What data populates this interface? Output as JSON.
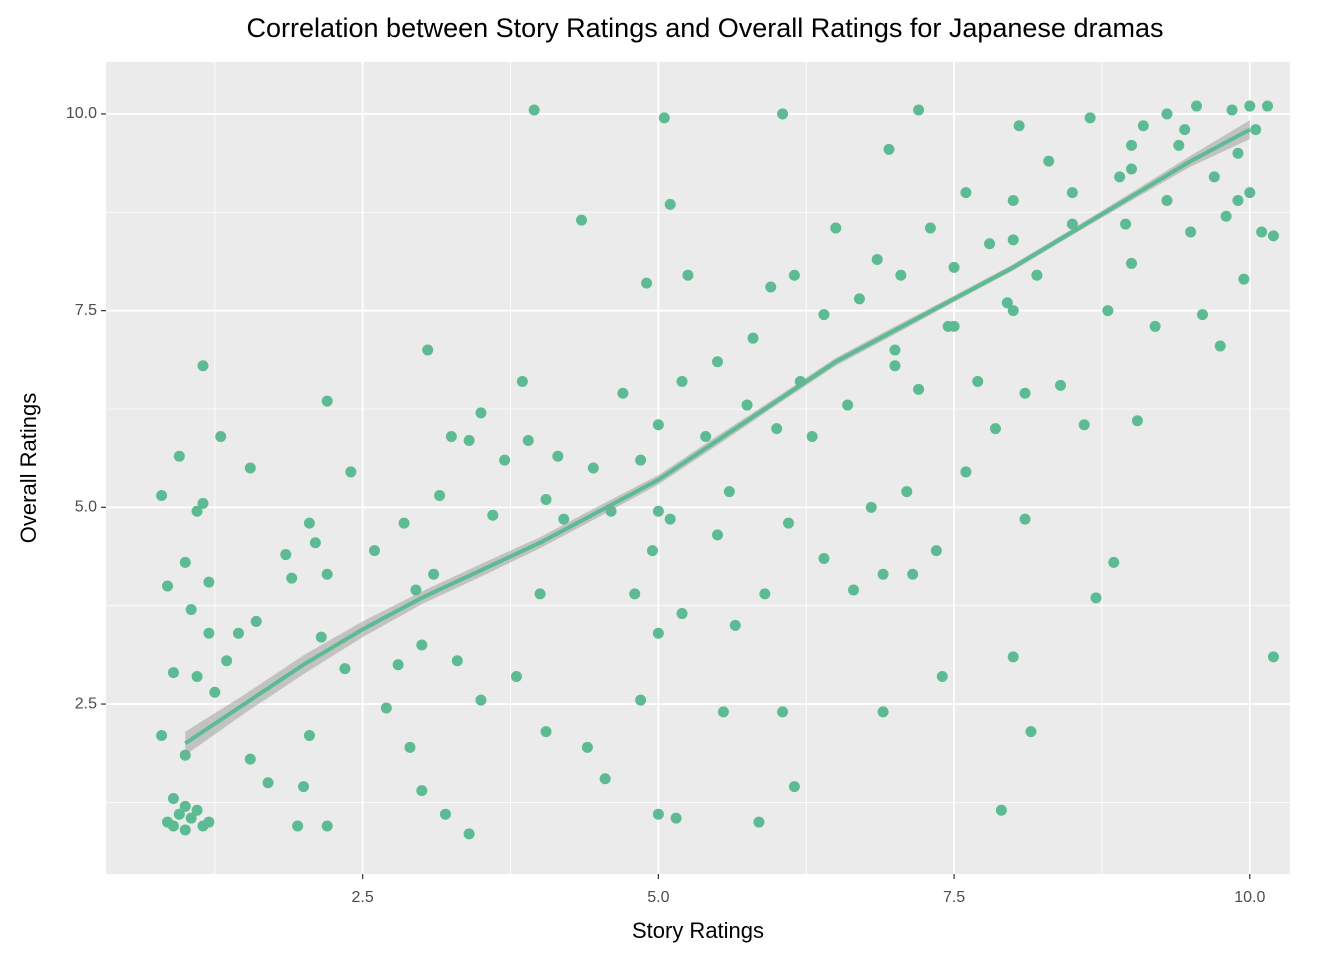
{
  "chart_data": {
    "type": "scatter",
    "title": "Correlation between Story Ratings and Overall Ratings for Japanese dramas",
    "x_label": "Story Ratings",
    "y_label": "Overall Ratings",
    "color": "#5cbb92",
    "xlim": [
      0.33,
      10.34
    ],
    "ylim": [
      0.34,
      10.66
    ],
    "xticks": [
      2.5,
      {
        "value": 5,
        "label": "5.0"
      },
      7.5,
      {
        "value": 10,
        "label": "10.0"
      }
    ],
    "yticks": [
      2.5,
      {
        "value": 5,
        "label": "5.0"
      },
      7.5,
      {
        "value": 10,
        "label": "10.0"
      }
    ],
    "xminor": [
      1.25,
      3.75,
      6.25,
      8.75
    ],
    "yminor": [
      1.25,
      3.75,
      6.25,
      8.75
    ],
    "grid": true,
    "x": [
      0.85,
      0.9,
      0.95,
      1.0,
      1.05,
      1.1,
      1.15,
      1.2,
      0.9,
      1.0,
      0.8,
      0.8,
      0.85,
      0.95,
      1.0,
      1.05,
      1.1,
      1.15,
      1.15,
      1.1,
      1.2,
      1.2,
      0.9,
      1.0,
      1.25,
      1.35,
      1.3,
      1.45,
      1.55,
      1.55,
      1.6,
      1.7,
      1.85,
      1.9,
      1.95,
      2.0,
      2.05,
      2.05,
      2.1,
      2.15,
      2.2,
      2.2,
      2.2,
      2.35,
      2.4,
      2.6,
      2.7,
      2.8,
      2.85,
      2.9,
      2.95,
      3.0,
      3.0,
      3.05,
      3.1,
      3.15,
      3.2,
      3.25,
      3.3,
      3.4,
      3.4,
      3.5,
      3.5,
      3.6,
      3.7,
      3.8,
      3.85,
      3.9,
      3.95,
      4.0,
      4.05,
      4.05,
      4.15,
      4.2,
      4.35,
      4.4,
      4.45,
      4.55,
      4.6,
      4.7,
      4.8,
      4.85,
      4.85,
      4.9,
      4.95,
      5.0,
      5.0,
      5.0,
      5.0,
      5.05,
      5.1,
      5.1,
      5.15,
      5.2,
      5.2,
      5.25,
      5.4,
      5.5,
      5.5,
      5.55,
      5.6,
      5.65,
      5.75,
      5.8,
      5.85,
      5.9,
      5.95,
      6.0,
      6.05,
      6.05,
      6.1,
      6.15,
      6.15,
      6.2,
      6.3,
      6.4,
      6.4,
      6.5,
      6.6,
      6.65,
      6.7,
      6.8,
      6.85,
      6.9,
      6.9,
      6.95,
      7.0,
      7.05,
      7.1,
      7.15,
      7.2,
      7.2,
      7.3,
      7.35,
      7.4,
      7.45,
      7.5,
      7.6,
      7.6,
      7.7,
      7.8,
      7.85,
      7.9,
      7.95,
      8.0,
      8.0,
      8.05,
      8.1,
      8.1,
      8.15,
      8.2,
      8.3,
      8.4,
      8.5,
      8.6,
      8.65,
      8.7,
      8.8,
      8.85,
      8.9,
      9.0,
      9.05,
      9.1,
      9.2,
      9.3,
      9.4,
      9.5,
      9.55,
      9.6,
      9.7,
      9.75,
      9.8,
      9.85,
      9.9,
      9.95,
      10.0,
      10.05,
      10.1,
      10.15,
      10.2,
      10.2,
      9.0,
      9.3,
      8.95,
      9.45,
      10.0,
      9.9,
      8.0,
      7.5,
      7.0,
      8.0,
      8.5,
      9.0
    ],
    "values": [
      1.0,
      0.95,
      1.1,
      0.9,
      1.05,
      1.15,
      0.95,
      1.0,
      1.3,
      1.2,
      5.15,
      2.1,
      4.0,
      5.65,
      4.3,
      3.7,
      4.95,
      5.05,
      6.8,
      2.85,
      4.05,
      3.4,
      2.9,
      1.85,
      2.65,
      3.05,
      5.9,
      3.4,
      1.8,
      5.5,
      3.55,
      1.5,
      4.4,
      4.1,
      0.95,
      1.45,
      4.8,
      2.1,
      4.55,
      3.35,
      4.15,
      6.35,
      0.95,
      2.95,
      5.45,
      4.45,
      2.45,
      3.0,
      4.8,
      1.95,
      3.95,
      3.25,
      1.4,
      7.0,
      4.15,
      5.15,
      1.1,
      5.9,
      3.05,
      5.85,
      0.85,
      6.2,
      2.55,
      4.9,
      5.6,
      2.85,
      6.6,
      5.85,
      10.05,
      3.9,
      2.15,
      5.1,
      5.65,
      4.85,
      8.65,
      1.95,
      5.5,
      1.55,
      4.95,
      6.45,
      3.9,
      5.6,
      2.55,
      7.85,
      4.45,
      4.95,
      3.4,
      6.05,
      1.1,
      9.95,
      8.85,
      4.85,
      1.05,
      3.65,
      6.6,
      7.95,
      5.9,
      4.65,
      6.85,
      2.4,
      5.2,
      3.5,
      6.3,
      7.15,
      1.0,
      3.9,
      7.8,
      6.0,
      10.0,
      2.4,
      4.8,
      1.45,
      7.95,
      6.6,
      5.9,
      7.45,
      4.35,
      8.55,
      6.3,
      3.95,
      7.65,
      5.0,
      8.15,
      2.4,
      4.15,
      9.55,
      7.0,
      7.95,
      5.2,
      4.15,
      10.05,
      6.5,
      8.55,
      4.45,
      2.85,
      7.3,
      8.05,
      5.45,
      9.0,
      6.6,
      8.35,
      6.0,
      1.15,
      7.6,
      8.9,
      3.1,
      9.85,
      4.85,
      6.45,
      2.15,
      7.95,
      9.4,
      6.55,
      8.6,
      6.05,
      9.95,
      3.85,
      7.5,
      4.3,
      9.2,
      8.1,
      6.1,
      9.85,
      7.3,
      8.9,
      9.6,
      8.5,
      10.1,
      7.45,
      9.2,
      7.05,
      8.7,
      10.05,
      9.5,
      7.9,
      9.0,
      9.8,
      8.5,
      10.1,
      8.45,
      3.1,
      9.6,
      10.0,
      8.6,
      9.8,
      10.1,
      8.9,
      7.5,
      7.3,
      6.8,
      8.4,
      9.0,
      9.3
    ],
    "smooth": {
      "color": "#5cbb92",
      "band_color": "#999999",
      "x": [
        1.0,
        1.5,
        2.0,
        2.5,
        3.0,
        3.5,
        4.0,
        4.5,
        5.0,
        5.5,
        6.0,
        6.5,
        7.0,
        7.5,
        8.0,
        8.5,
        9.0,
        9.5,
        10.0
      ],
      "values": [
        2.0,
        2.5,
        3.0,
        3.45,
        3.85,
        4.2,
        4.55,
        4.95,
        5.35,
        5.85,
        6.35,
        6.85,
        7.25,
        7.65,
        8.05,
        8.5,
        8.95,
        9.4,
        9.8
      ],
      "lower": [
        1.85,
        2.38,
        2.88,
        3.35,
        3.77,
        4.12,
        4.48,
        4.88,
        5.29,
        5.79,
        6.3,
        6.8,
        7.2,
        7.61,
        8.01,
        8.46,
        8.9,
        9.33,
        9.68
      ],
      "upper": [
        2.15,
        2.62,
        3.12,
        3.55,
        3.93,
        4.28,
        4.62,
        5.02,
        5.41,
        5.91,
        6.4,
        6.9,
        7.3,
        7.69,
        8.09,
        8.54,
        9.0,
        9.47,
        9.92
      ]
    }
  }
}
